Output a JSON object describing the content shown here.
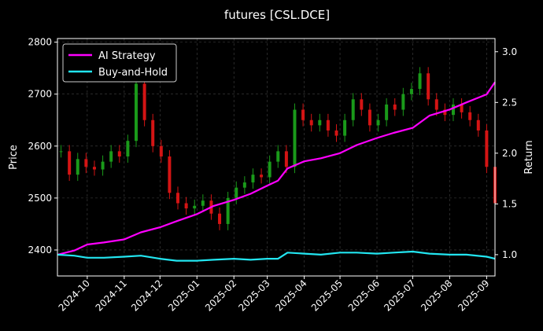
{
  "chart_data": {
    "type": "line",
    "title": "futures [CSL.DCE]",
    "ylabel_left": "Price",
    "ylabel_right": "Return",
    "x_tick_labels": [
      "2024-10",
      "2024-11",
      "2024-12",
      "2025-01",
      "2025-02",
      "2025-03",
      "2025-04",
      "2025-05",
      "2025-06",
      "2025-07",
      "2025-08",
      "2025-09"
    ],
    "x_range": [
      "2024-09-06",
      "2025-09-08"
    ],
    "y_left_ticks": [
      2400,
      2500,
      2600,
      2700,
      2800
    ],
    "y_left_range": [
      2350,
      2807
    ],
    "y_right_ticks": [
      1.0,
      1.5,
      2.0,
      2.5,
      3.0
    ],
    "y_right_labels": [
      "1.0",
      "1.5",
      "2.0",
      "2.5",
      "3.0"
    ],
    "y_right_range": [
      0.79,
      3.13
    ],
    "grid": true,
    "legend_position": "top-left",
    "colors": {
      "background": "#000000",
      "up": "#1a9a1a",
      "down": "#d41414",
      "grid": "#444444"
    },
    "price_series": {
      "name": "CSL.DCE price (candles)",
      "x": [
        "2024-09-09",
        "2024-09-16",
        "2024-09-23",
        "2024-09-30",
        "2024-10-07",
        "2024-10-14",
        "2024-10-21",
        "2024-10-28",
        "2024-11-04",
        "2024-11-11",
        "2024-11-18",
        "2024-11-25",
        "2024-12-02",
        "2024-12-09",
        "2024-12-16",
        "2024-12-23",
        "2024-12-30",
        "2025-01-06",
        "2025-01-13",
        "2025-01-20",
        "2025-01-27",
        "2025-02-03",
        "2025-02-10",
        "2025-02-17",
        "2025-02-24",
        "2025-03-03",
        "2025-03-10",
        "2025-03-17",
        "2025-03-24",
        "2025-03-31",
        "2025-04-07",
        "2025-04-14",
        "2025-04-21",
        "2025-04-28",
        "2025-05-05",
        "2025-05-12",
        "2025-05-19",
        "2025-05-26",
        "2025-06-02",
        "2025-06-09",
        "2025-06-16",
        "2025-06-23",
        "2025-06-30",
        "2025-07-07",
        "2025-07-14",
        "2025-07-21",
        "2025-07-28",
        "2025-08-04",
        "2025-08-11",
        "2025-08-18",
        "2025-08-25",
        "2025-09-01",
        "2025-09-08"
      ],
      "values": [
        2590,
        2545,
        2575,
        2560,
        2555,
        2570,
        2590,
        2580,
        2610,
        2720,
        2650,
        2600,
        2580,
        2510,
        2490,
        2480,
        2485,
        2495,
        2470,
        2450,
        2500,
        2520,
        2530,
        2545,
        2540,
        2570,
        2590,
        2560,
        2670,
        2650,
        2640,
        2650,
        2630,
        2620,
        2650,
        2690,
        2670,
        2640,
        2650,
        2680,
        2670,
        2700,
        2710,
        2740,
        2690,
        2670,
        2660,
        2680,
        2665,
        2650,
        2630,
        2560,
        2490
      ]
    },
    "series": [
      {
        "name": "AI Strategy",
        "color": "#ff00ff",
        "x": [
          "2024-09-06",
          "2024-09-20",
          "2024-10-01",
          "2024-10-15",
          "2024-11-01",
          "2024-11-15",
          "2024-12-01",
          "2024-12-15",
          "2025-01-01",
          "2025-01-15",
          "2025-02-01",
          "2025-02-15",
          "2025-03-01",
          "2025-03-10",
          "2025-03-18",
          "2025-04-01",
          "2025-04-15",
          "2025-05-01",
          "2025-05-15",
          "2025-06-01",
          "2025-06-15",
          "2025-07-01",
          "2025-07-15",
          "2025-08-01",
          "2025-08-15",
          "2025-09-01",
          "2025-09-08"
        ],
        "values": [
          1.0,
          1.04,
          1.1,
          1.12,
          1.15,
          1.22,
          1.27,
          1.33,
          1.4,
          1.48,
          1.54,
          1.6,
          1.68,
          1.73,
          1.85,
          1.92,
          1.95,
          2.0,
          2.08,
          2.15,
          2.2,
          2.25,
          2.37,
          2.43,
          2.5,
          2.58,
          2.7
        ]
      },
      {
        "name": "Buy-and-Hold",
        "color": "#22e5f0",
        "x": [
          "2024-09-06",
          "2024-09-20",
          "2024-10-01",
          "2024-10-15",
          "2024-11-01",
          "2024-11-15",
          "2024-12-01",
          "2024-12-15",
          "2025-01-01",
          "2025-01-15",
          "2025-02-01",
          "2025-02-15",
          "2025-03-01",
          "2025-03-10",
          "2025-03-18",
          "2025-04-01",
          "2025-04-15",
          "2025-05-01",
          "2025-05-15",
          "2025-06-01",
          "2025-06-15",
          "2025-07-01",
          "2025-07-15",
          "2025-08-01",
          "2025-08-15",
          "2025-09-01",
          "2025-09-08"
        ],
        "values": [
          1.0,
          0.99,
          0.97,
          0.97,
          0.98,
          0.99,
          0.96,
          0.94,
          0.94,
          0.95,
          0.96,
          0.95,
          0.96,
          0.96,
          1.02,
          1.01,
          1.0,
          1.02,
          1.02,
          1.01,
          1.02,
          1.03,
          1.01,
          1.0,
          1.0,
          0.98,
          0.96
        ]
      }
    ]
  }
}
